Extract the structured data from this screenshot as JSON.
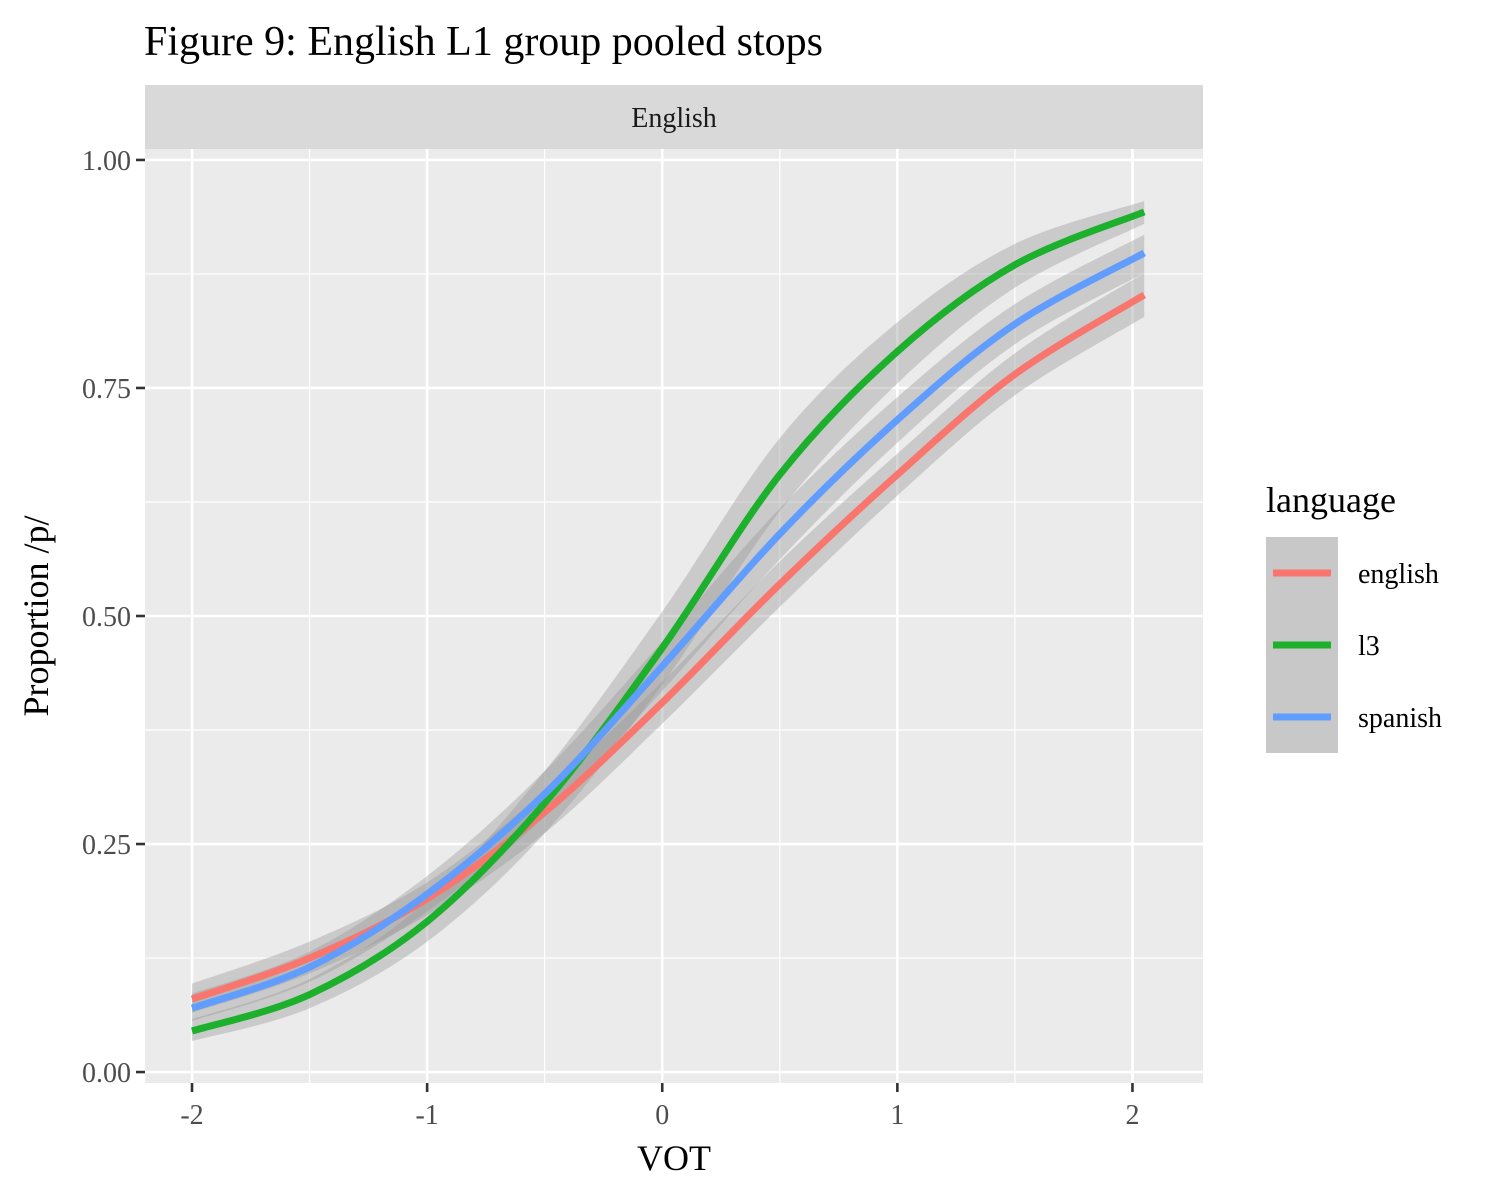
{
  "chart_data": {
    "type": "line",
    "title": "Figure 9: English L1 group pooled stops",
    "facet": "English",
    "xlabel": "VOT",
    "ylabel": "Proportion /p/",
    "xlim": [
      -2.2,
      2.3
    ],
    "ylim": [
      -0.012,
      1.012
    ],
    "x_ticks": [
      -2,
      -1,
      0,
      1,
      2
    ],
    "x_tick_labels": [
      "-2",
      "-1",
      "0",
      "1",
      "2"
    ],
    "y_ticks": [
      0,
      0.25,
      0.5,
      0.75,
      1
    ],
    "y_tick_labels": [
      "0.00",
      "0.25",
      "0.50",
      "0.75",
      "1.00"
    ],
    "grid": true,
    "confidence_band": true,
    "legend": {
      "title": "language",
      "placement": "right"
    },
    "series": [
      {
        "name": "english",
        "color": "#F8766D",
        "x": [
          -2,
          -1.5,
          -1,
          -0.5,
          0,
          0.5,
          1,
          1.5,
          2.05
        ],
        "y": [
          0.08,
          0.125,
          0.19,
          0.285,
          0.405,
          0.535,
          0.655,
          0.765,
          0.852
        ],
        "lower": [
          0.065,
          0.108,
          0.172,
          0.262,
          0.382,
          0.51,
          0.632,
          0.742,
          0.828
        ],
        "upper": [
          0.097,
          0.143,
          0.208,
          0.308,
          0.428,
          0.56,
          0.678,
          0.788,
          0.876
        ]
      },
      {
        "name": "l3",
        "color": "#1DB02C",
        "x": [
          -2,
          -1.5,
          -1,
          -0.5,
          0,
          0.5,
          1,
          1.5,
          2.05
        ],
        "y": [
          0.045,
          0.085,
          0.165,
          0.295,
          0.465,
          0.655,
          0.79,
          0.885,
          0.943
        ],
        "lower": [
          0.034,
          0.07,
          0.143,
          0.262,
          0.425,
          0.615,
          0.755,
          0.86,
          0.93
        ],
        "upper": [
          0.058,
          0.102,
          0.188,
          0.33,
          0.505,
          0.695,
          0.822,
          0.908,
          0.955
        ]
      },
      {
        "name": "spanish",
        "color": "#619CFF",
        "x": [
          -2,
          -1.5,
          -1,
          -0.5,
          0,
          0.5,
          1,
          1.5,
          2.05
        ],
        "y": [
          0.07,
          0.115,
          0.195,
          0.305,
          0.445,
          0.59,
          0.715,
          0.82,
          0.898
        ],
        "lower": [
          0.056,
          0.099,
          0.176,
          0.28,
          0.418,
          0.562,
          0.69,
          0.798,
          0.876
        ],
        "upper": [
          0.086,
          0.132,
          0.215,
          0.33,
          0.472,
          0.618,
          0.74,
          0.842,
          0.918
        ]
      }
    ]
  }
}
